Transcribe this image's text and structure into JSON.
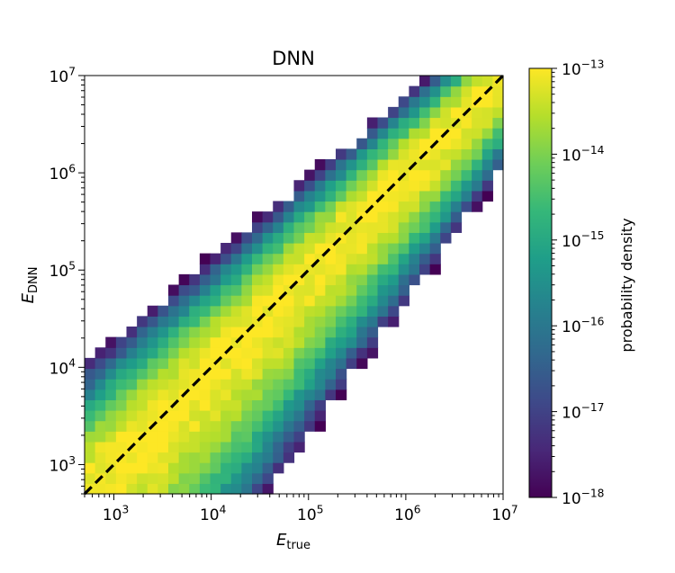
{
  "chart_data": {
    "type": "heatmap",
    "title": "DNN",
    "xlabel": {
      "base": "E",
      "sub": "true"
    },
    "ylabel": {
      "base": "E",
      "sub": "DNN"
    },
    "x_scale": "log",
    "y_scale": "log",
    "xlim": [
      500,
      10000000
    ],
    "ylim": [
      500,
      10000000
    ],
    "x_ticks": [
      {
        "value": 1000,
        "base": "10",
        "exp": "3"
      },
      {
        "value": 10000,
        "base": "10",
        "exp": "4"
      },
      {
        "value": 100000,
        "base": "10",
        "exp": "5"
      },
      {
        "value": 1000000,
        "base": "10",
        "exp": "6"
      },
      {
        "value": 10000000,
        "base": "10",
        "exp": "7"
      }
    ],
    "y_ticks": [
      {
        "value": 1000,
        "base": "10",
        "exp": "3"
      },
      {
        "value": 10000,
        "base": "10",
        "exp": "4"
      },
      {
        "value": 100000,
        "base": "10",
        "exp": "5"
      },
      {
        "value": 1000000,
        "base": "10",
        "exp": "6"
      },
      {
        "value": 10000000,
        "base": "10",
        "exp": "7"
      }
    ],
    "bins": {
      "n": 40,
      "log10_min": 2.699,
      "log10_max": 7.0
    },
    "reference_line": {
      "type": "y=x",
      "style": "dashed",
      "color": "#000000"
    },
    "density_model": {
      "description": "2D histogram concentrated along the diagonal, spreading wider at low energies and toward E_DNN < E_true",
      "log10_peak": -13.0,
      "log10_floor": -18.0
    },
    "colorbar": {
      "label": "probability density",
      "scale": "log",
      "range": [
        1e-18,
        1e-13
      ],
      "colormap": "viridis",
      "ticks": [
        {
          "value": 1e-13,
          "base": "10",
          "exp": "−13"
        },
        {
          "value": 1e-14,
          "base": "10",
          "exp": "−14"
        },
        {
          "value": 1e-15,
          "base": "10",
          "exp": "−15"
        },
        {
          "value": 1e-16,
          "base": "10",
          "exp": "−16"
        },
        {
          "value": 1e-17,
          "base": "10",
          "exp": "−17"
        },
        {
          "value": 1e-18,
          "base": "10",
          "exp": "−18"
        }
      ]
    }
  },
  "colors": {
    "viridis": [
      "#440154",
      "#482878",
      "#3e4989",
      "#31688e",
      "#26828e",
      "#1f9e89",
      "#35b779",
      "#6ece58",
      "#b5de2b",
      "#fde725"
    ],
    "diagonal": "#000000"
  }
}
